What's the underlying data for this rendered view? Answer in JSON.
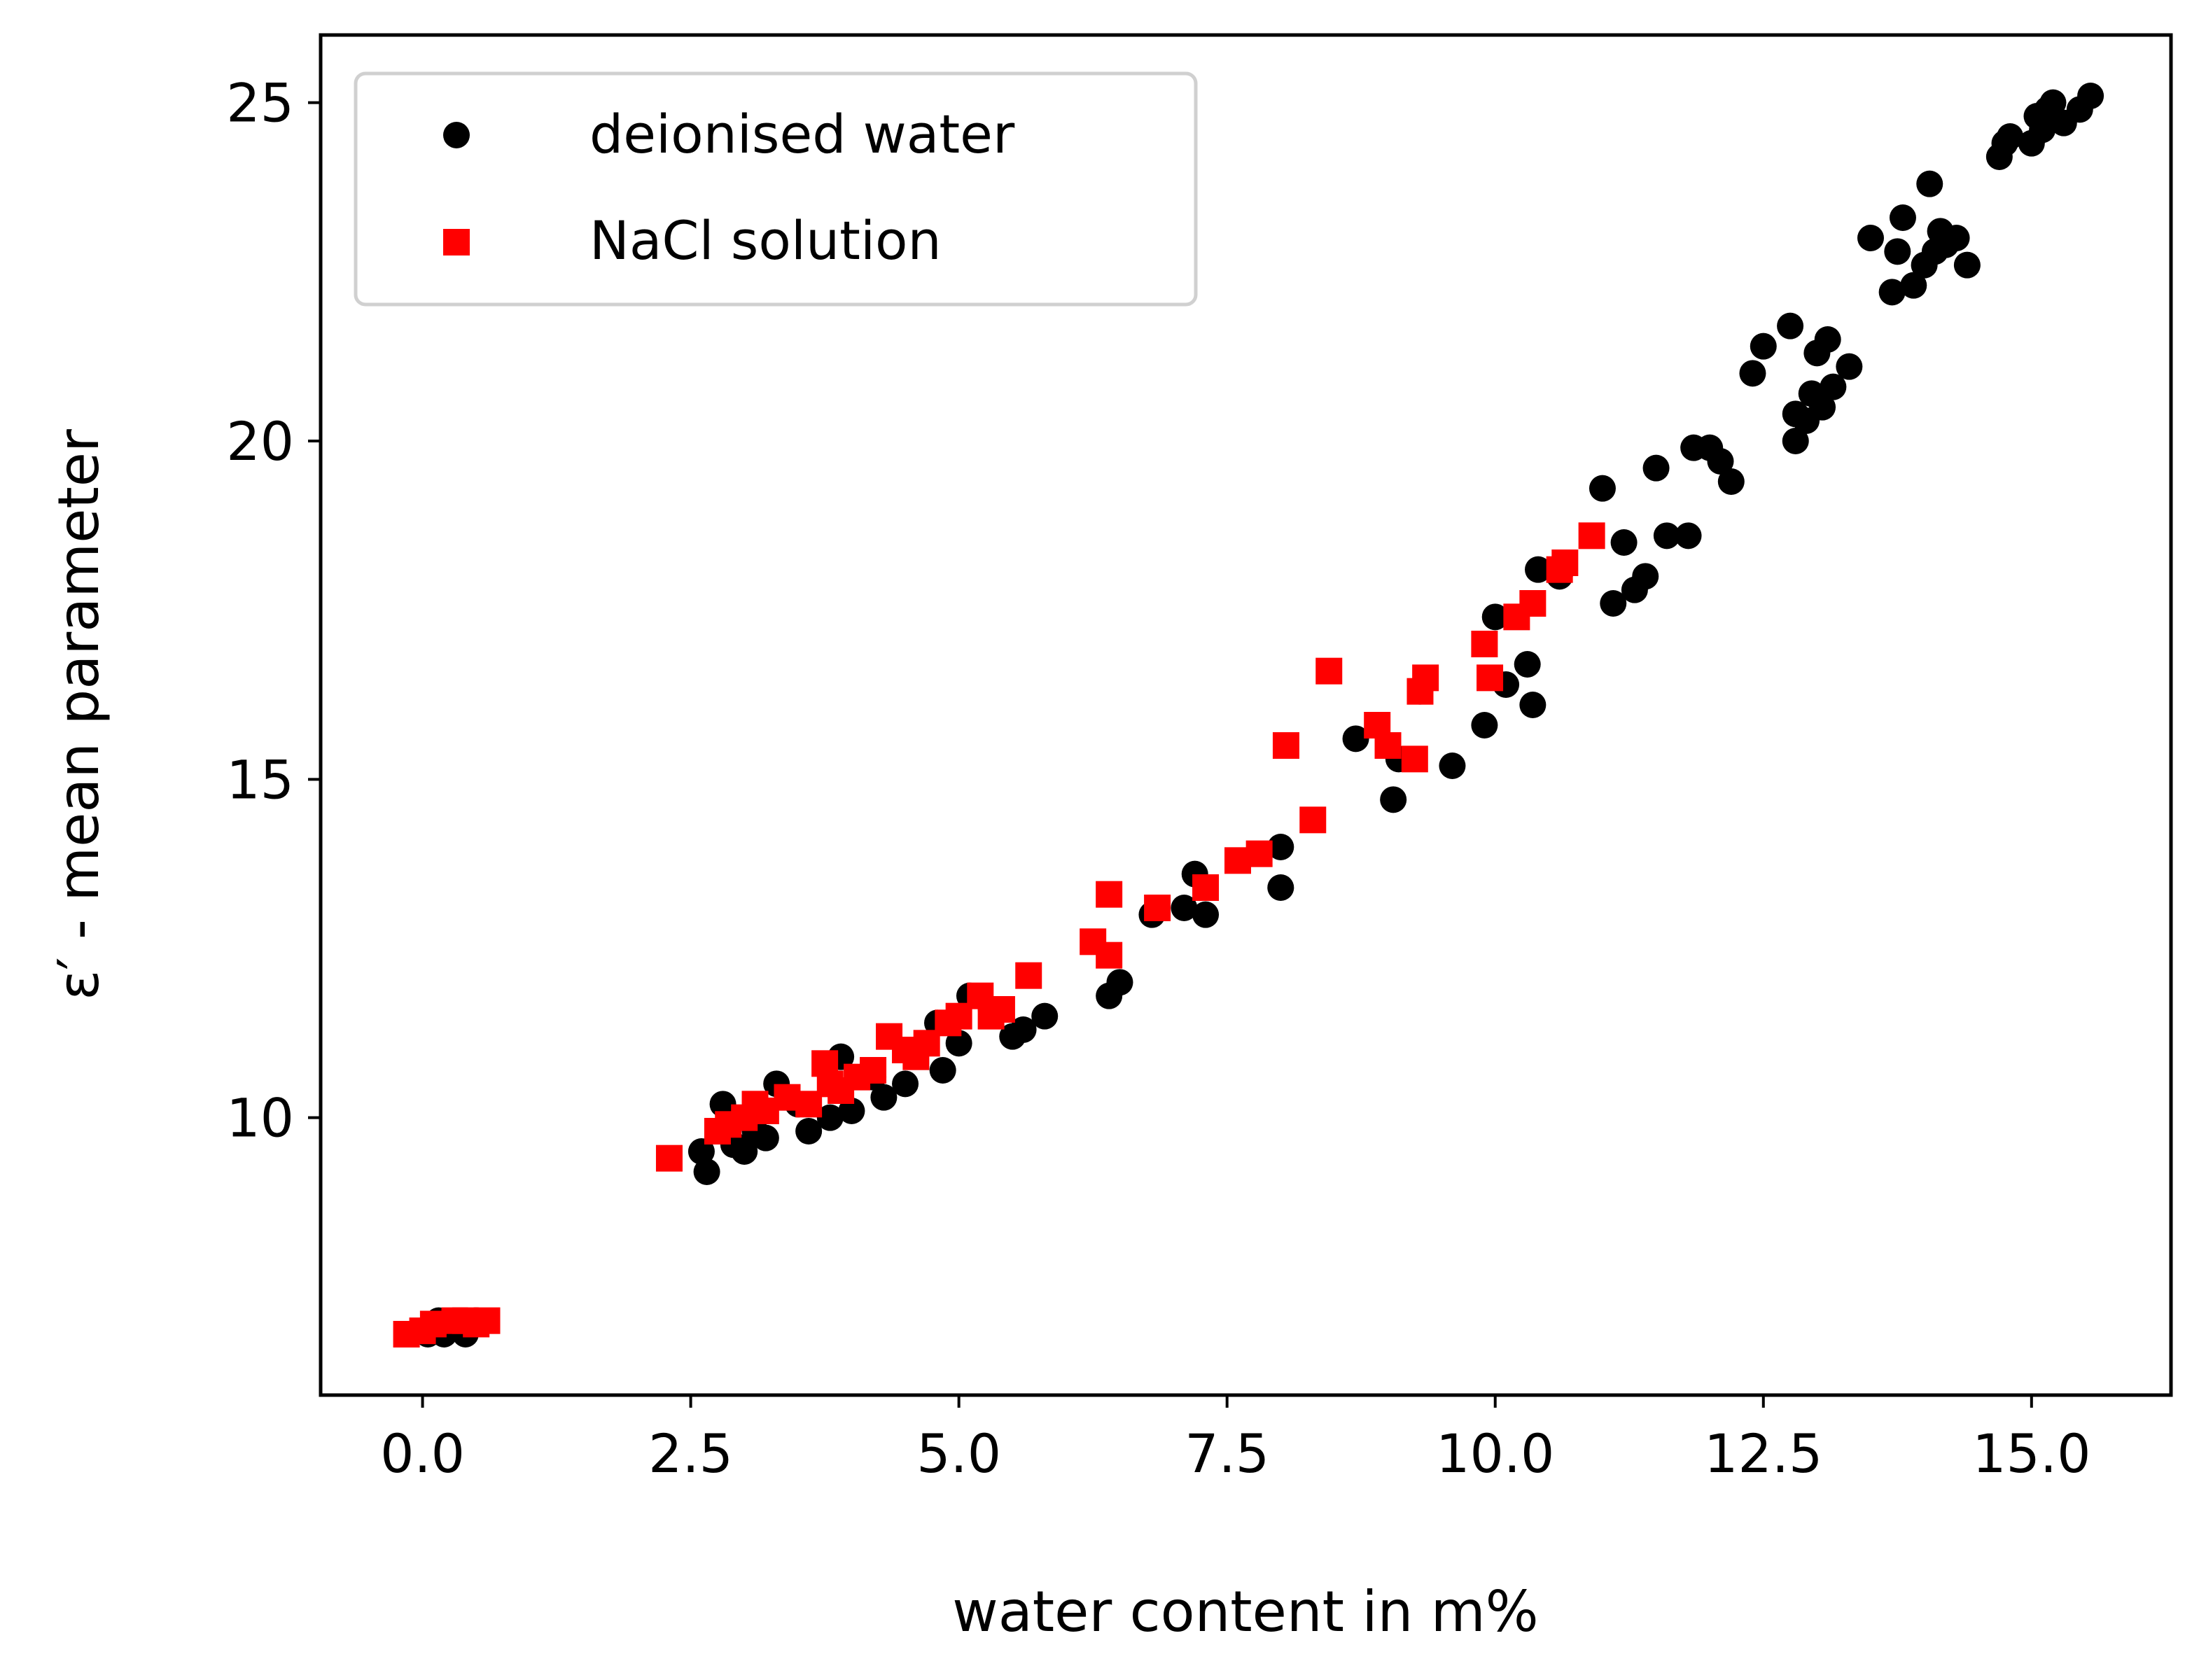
{
  "chart_data": {
    "type": "scatter",
    "title": "",
    "xlabel": "water content in m%",
    "ylabel": "ε′ - mean parameter",
    "xlim": [
      -0.95,
      16.3
    ],
    "ylim": [
      5.9,
      26.0
    ],
    "xticks": [
      0.0,
      2.5,
      5.0,
      7.5,
      10.0,
      12.5,
      15.0
    ],
    "xtick_labels": [
      "0.0",
      "2.5",
      "5.0",
      "7.5",
      "10.0",
      "12.5",
      "15.0"
    ],
    "yticks": [
      10,
      15,
      20,
      25
    ],
    "ytick_labels": [
      "10",
      "15",
      "20",
      "25"
    ],
    "grid": false,
    "legend_position": "top-left",
    "series": [
      {
        "name": "deionised water",
        "marker": "circle",
        "color": "#000000",
        "points": [
          [
            0.05,
            6.8
          ],
          [
            0.15,
            7.0
          ],
          [
            0.2,
            6.8
          ],
          [
            0.3,
            6.9
          ],
          [
            0.4,
            6.8
          ],
          [
            0.5,
            7.0
          ],
          [
            2.6,
            9.5
          ],
          [
            2.65,
            9.2
          ],
          [
            2.8,
            10.2
          ],
          [
            2.9,
            9.6
          ],
          [
            3.0,
            9.5
          ],
          [
            3.1,
            9.8
          ],
          [
            3.2,
            9.7
          ],
          [
            3.3,
            10.5
          ],
          [
            3.5,
            10.2
          ],
          [
            3.6,
            9.8
          ],
          [
            3.8,
            10.0
          ],
          [
            3.9,
            10.9
          ],
          [
            4.0,
            10.1
          ],
          [
            4.2,
            10.6
          ],
          [
            4.3,
            10.3
          ],
          [
            4.5,
            10.5
          ],
          [
            4.6,
            11.0
          ],
          [
            4.8,
            11.4
          ],
          [
            4.85,
            10.7
          ],
          [
            5.0,
            11.1
          ],
          [
            5.1,
            11.8
          ],
          [
            5.3,
            11.6
          ],
          [
            5.5,
            11.2
          ],
          [
            5.6,
            11.3
          ],
          [
            5.8,
            11.5
          ],
          [
            6.4,
            11.8
          ],
          [
            6.5,
            12.0
          ],
          [
            6.8,
            13.0
          ],
          [
            7.1,
            13.1
          ],
          [
            7.2,
            13.6
          ],
          [
            7.3,
            13.0
          ],
          [
            8.0,
            14.0
          ],
          [
            8.0,
            13.4
          ],
          [
            8.7,
            15.6
          ],
          [
            9.05,
            14.7
          ],
          [
            9.1,
            15.3
          ],
          [
            9.3,
            16.3
          ],
          [
            9.6,
            15.2
          ],
          [
            9.9,
            15.8
          ],
          [
            10.0,
            17.4
          ],
          [
            10.1,
            16.4
          ],
          [
            10.3,
            16.7
          ],
          [
            10.35,
            16.1
          ],
          [
            10.4,
            18.1
          ],
          [
            10.6,
            18.0
          ],
          [
            11.0,
            19.3
          ],
          [
            11.1,
            17.6
          ],
          [
            11.2,
            18.5
          ],
          [
            11.3,
            17.8
          ],
          [
            11.4,
            18.0
          ],
          [
            11.5,
            19.6
          ],
          [
            11.6,
            18.6
          ],
          [
            11.8,
            18.6
          ],
          [
            11.85,
            19.9
          ],
          [
            12.0,
            19.9
          ],
          [
            12.1,
            19.7
          ],
          [
            12.2,
            19.4
          ],
          [
            12.4,
            21.0
          ],
          [
            12.5,
            21.4
          ],
          [
            12.75,
            21.7
          ],
          [
            12.8,
            20.0
          ],
          [
            12.8,
            20.4
          ],
          [
            12.9,
            20.3
          ],
          [
            12.95,
            20.7
          ],
          [
            13.0,
            21.3
          ],
          [
            13.05,
            20.5
          ],
          [
            13.1,
            21.5
          ],
          [
            13.15,
            20.8
          ],
          [
            13.3,
            21.1
          ],
          [
            13.5,
            23.0
          ],
          [
            13.7,
            22.2
          ],
          [
            13.75,
            22.8
          ],
          [
            13.8,
            23.3
          ],
          [
            13.9,
            22.3
          ],
          [
            14.0,
            22.6
          ],
          [
            14.05,
            23.8
          ],
          [
            14.1,
            22.8
          ],
          [
            14.15,
            23.1
          ],
          [
            14.2,
            22.9
          ],
          [
            14.3,
            23.0
          ],
          [
            14.4,
            22.6
          ],
          [
            14.7,
            24.2
          ],
          [
            14.75,
            24.4
          ],
          [
            14.8,
            24.5
          ],
          [
            15.0,
            24.4
          ],
          [
            15.05,
            24.8
          ],
          [
            15.1,
            24.6
          ],
          [
            15.15,
            24.9
          ],
          [
            15.2,
            25.0
          ],
          [
            15.3,
            24.7
          ],
          [
            15.45,
            24.9
          ],
          [
            15.55,
            25.1
          ]
        ]
      },
      {
        "name": "NaCl solution",
        "marker": "square",
        "color": "#ff0000",
        "points": [
          [
            -0.15,
            6.8
          ],
          [
            0.0,
            6.85
          ],
          [
            0.1,
            6.95
          ],
          [
            0.3,
            7.0
          ],
          [
            0.4,
            7.0
          ],
          [
            0.5,
            6.95
          ],
          [
            0.6,
            7.0
          ],
          [
            2.3,
            9.4
          ],
          [
            2.75,
            9.8
          ],
          [
            2.85,
            9.9
          ],
          [
            3.0,
            10.0
          ],
          [
            3.1,
            10.2
          ],
          [
            3.2,
            10.1
          ],
          [
            3.4,
            10.3
          ],
          [
            3.6,
            10.2
          ],
          [
            3.75,
            10.8
          ],
          [
            3.8,
            10.5
          ],
          [
            3.9,
            10.4
          ],
          [
            4.05,
            10.6
          ],
          [
            4.2,
            10.7
          ],
          [
            4.35,
            11.2
          ],
          [
            4.5,
            11.0
          ],
          [
            4.6,
            10.9
          ],
          [
            4.7,
            11.1
          ],
          [
            4.9,
            11.4
          ],
          [
            5.0,
            11.5
          ],
          [
            5.2,
            11.8
          ],
          [
            5.3,
            11.5
          ],
          [
            5.4,
            11.6
          ],
          [
            5.65,
            12.1
          ],
          [
            6.25,
            12.6
          ],
          [
            6.4,
            13.3
          ],
          [
            6.4,
            12.4
          ],
          [
            6.85,
            13.1
          ],
          [
            7.3,
            13.4
          ],
          [
            7.6,
            13.8
          ],
          [
            7.8,
            13.9
          ],
          [
            8.05,
            15.5
          ],
          [
            8.3,
            14.4
          ],
          [
            8.45,
            16.6
          ],
          [
            8.9,
            15.8
          ],
          [
            9.0,
            15.5
          ],
          [
            9.25,
            15.3
          ],
          [
            9.3,
            16.3
          ],
          [
            9.35,
            16.5
          ],
          [
            9.9,
            17.0
          ],
          [
            9.95,
            16.5
          ],
          [
            10.2,
            17.4
          ],
          [
            10.35,
            17.6
          ],
          [
            10.6,
            18.1
          ],
          [
            10.65,
            18.2
          ],
          [
            10.9,
            18.6
          ]
        ]
      }
    ]
  }
}
